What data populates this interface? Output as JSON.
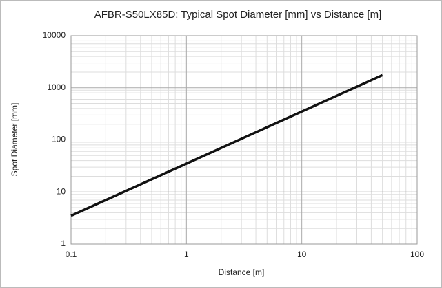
{
  "chart_data": {
    "type": "line",
    "title": "AFBR-S50LX85D: Typical Spot Diameter [mm] vs Distance [m]",
    "xlabel": "Distance [m]",
    "ylabel": "Spot Diameter [mm]",
    "x": [
      0.1,
      50
    ],
    "series": [
      {
        "name": "Spot Diameter",
        "color": "#111111",
        "values": [
          3.5,
          1750
        ]
      }
    ],
    "xlim": [
      0.1,
      100
    ],
    "xticks": [
      0.1,
      1,
      10,
      100
    ],
    "ylim": [
      1,
      10000
    ],
    "yticks": [
      1,
      10,
      100,
      1000,
      10000
    ],
    "xscale": "log",
    "yscale": "log",
    "grid": true,
    "minor_grid": true,
    "legend": false
  }
}
